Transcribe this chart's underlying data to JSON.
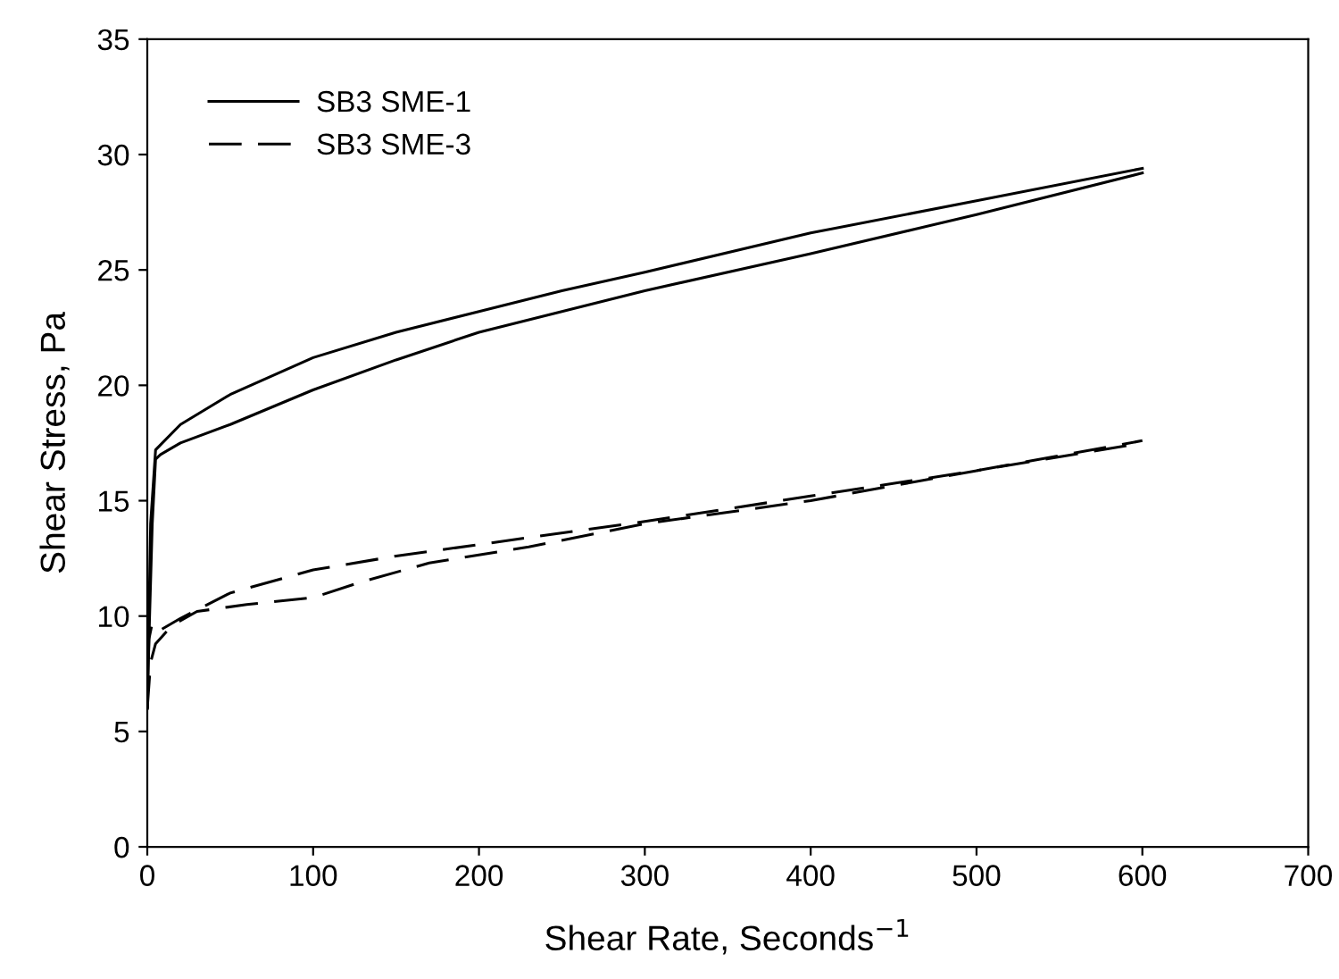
{
  "chart_data": {
    "type": "line",
    "xlabel": "Shear Rate, Seconds$^{−1}$",
    "ylabel": "Shear Stress, Pa",
    "xlim": [
      0,
      700
    ],
    "ylim": [
      0,
      35
    ],
    "xticks": [
      0,
      100,
      200,
      300,
      400,
      500,
      600,
      700
    ],
    "yticks": [
      0,
      5,
      10,
      15,
      20,
      25,
      30,
      35
    ],
    "legend": "top left",
    "grid": false,
    "series": [
      {
        "name": "SB3 SME-1",
        "color": "#000000",
        "line_style": "solid",
        "x": [
          0,
          2,
          5,
          20,
          50,
          100,
          150,
          200,
          250,
          300,
          400,
          500,
          600
        ],
        "values": [
          6,
          14,
          17.2,
          18.3,
          19.6,
          21.2,
          22.3,
          23.2,
          24.1,
          24.9,
          26.6,
          28,
          29.4
        ]
      },
      {
        "color": "#000000",
        "line_style": "solid",
        "x": [
          0,
          1,
          3,
          5,
          8,
          20,
          50,
          100,
          150,
          200,
          250,
          300,
          400,
          500,
          600
        ],
        "values": [
          6,
          9,
          14,
          16.8,
          17,
          17.5,
          18.3,
          19.8,
          21.1,
          22.3,
          23.2,
          24.1,
          25.7,
          27.4,
          29.2
        ]
      },
      {
        "name": "SB3 SME-3",
        "color": "#000000",
        "line_style": "dashed",
        "x": [
          0,
          1,
          3,
          8,
          20,
          50,
          100,
          150,
          200,
          300,
          400,
          500,
          600
        ],
        "values": [
          6,
          9,
          9.7,
          9.4,
          9.9,
          11,
          12,
          12.6,
          13.1,
          14.1,
          15.2,
          16.3,
          17.6
        ]
      },
      {
        "color": "#000000",
        "line_style": "dashed",
        "x": [
          0,
          2,
          5,
          15,
          30,
          60,
          100,
          130,
          170,
          230,
          300,
          400,
          500,
          600
        ],
        "values": [
          6,
          8,
          8.8,
          9.6,
          10.2,
          10.5,
          10.8,
          11.5,
          12.3,
          13,
          14,
          15,
          16.3,
          17.5
        ]
      }
    ]
  }
}
